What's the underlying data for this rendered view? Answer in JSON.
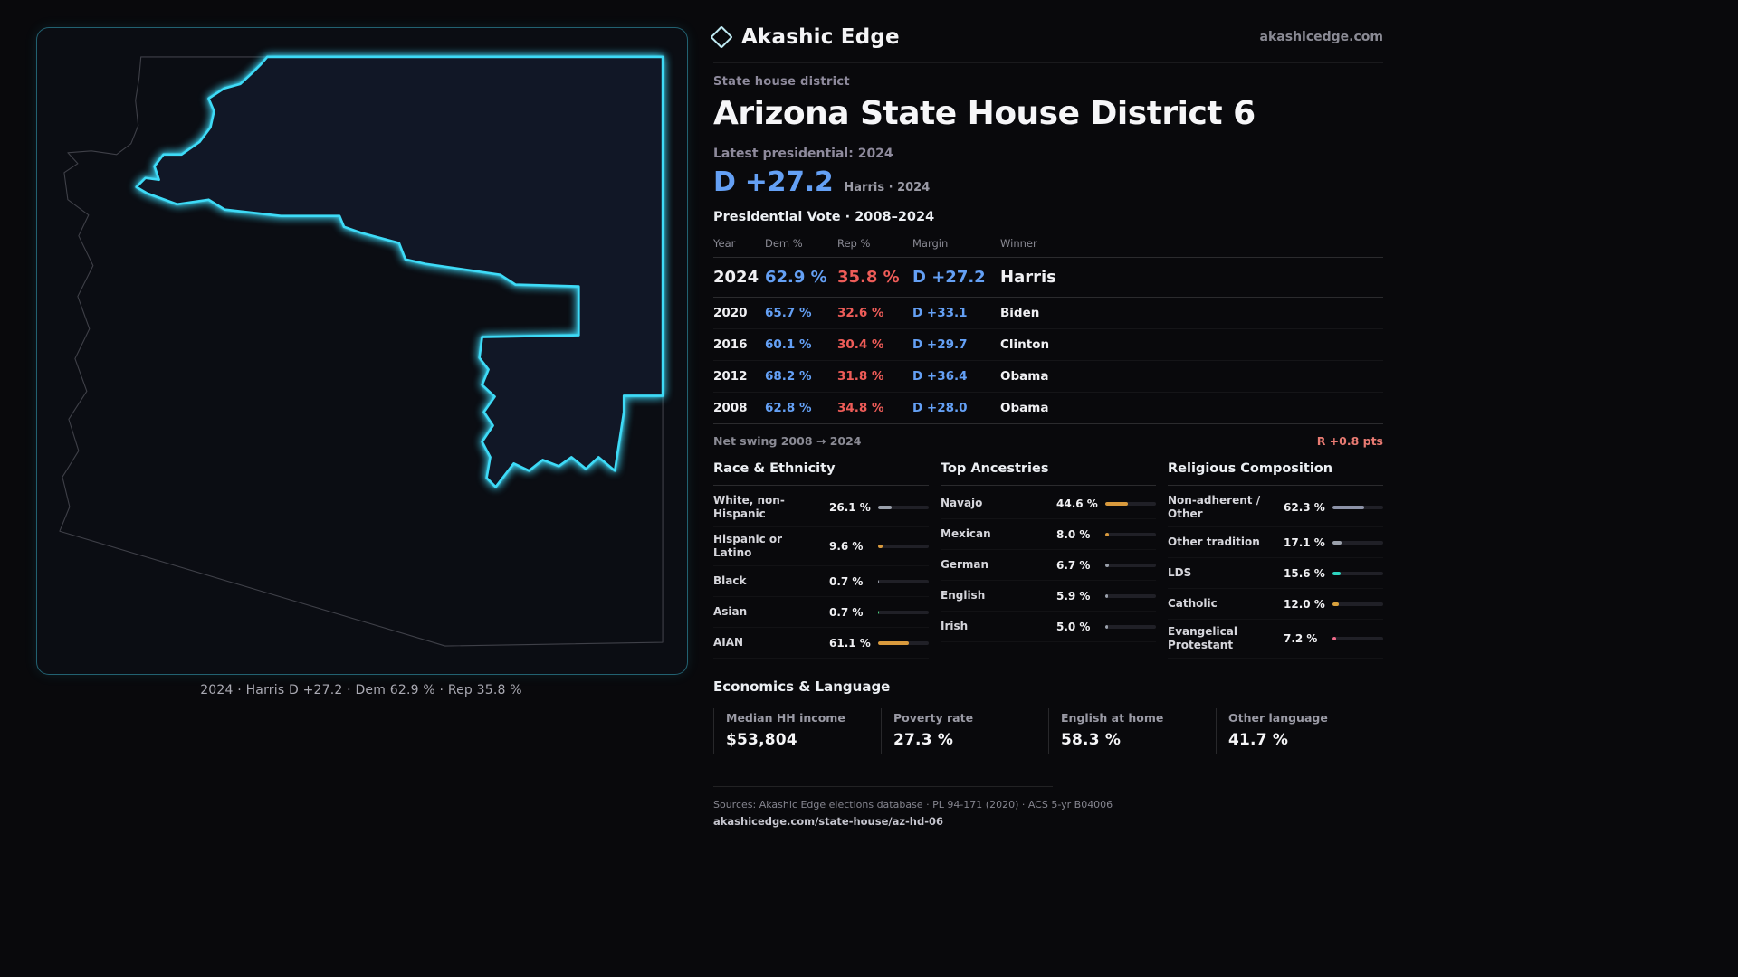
{
  "theme": {
    "background": "#09090c",
    "accent_cyan": "#3edbf7",
    "dem_blue": "#64a0f5",
    "rep_red": "#ee5c58",
    "swing_red": "#e87a72",
    "amber": "#d99a3d",
    "teal": "#2dd4bf",
    "pink": "#ef6a8a",
    "muted": "#9a9aa5"
  },
  "header": {
    "brand": "Akashic Edge",
    "site": "akashicedge.com",
    "logo_icon": "diamond-icon"
  },
  "district": {
    "kicker": "State house district",
    "title": "Arizona State House District 6",
    "latest_label": "Latest presidential: 2024",
    "headline_margin": "D +27.2",
    "headline_detail": "Harris · 2024"
  },
  "map": {
    "caption": "2024 · Harris D +27.2 · Dem 62.9 % · Rep 35.8 %"
  },
  "vote_table": {
    "title": "Presidential Vote · 2008–2024",
    "columns": [
      "Year",
      "Dem %",
      "Rep %",
      "Margin",
      "Winner"
    ],
    "rows": [
      {
        "year": "2024",
        "dem": "62.9 %",
        "rep": "35.8 %",
        "margin": "D +27.2",
        "winner": "Harris",
        "highlight": true
      },
      {
        "year": "2020",
        "dem": "65.7 %",
        "rep": "32.6 %",
        "margin": "D +33.1",
        "winner": "Biden",
        "highlight": false
      },
      {
        "year": "2016",
        "dem": "60.1 %",
        "rep": "30.4 %",
        "margin": "D +29.7",
        "winner": "Clinton",
        "highlight": false
      },
      {
        "year": "2012",
        "dem": "68.2 %",
        "rep": "31.8 %",
        "margin": "D +36.4",
        "winner": "Obama",
        "highlight": false
      },
      {
        "year": "2008",
        "dem": "62.8 %",
        "rep": "34.8 %",
        "margin": "D +28.0",
        "winner": "Obama",
        "highlight": false
      }
    ],
    "net_swing_label": "Net swing 2008 → 2024",
    "net_swing_value": "R +0.8 pts"
  },
  "demographics": [
    {
      "title": "Race & Ethnicity",
      "rows": [
        {
          "label": "White, non-Hispanic",
          "value": "26.1 %",
          "pct": 26.1,
          "color": "#9aa0ab"
        },
        {
          "label": "Hispanic or Latino",
          "value": "9.6 %",
          "pct": 9.6,
          "color": "#d99a3d"
        },
        {
          "label": "Black",
          "value": "0.7 %",
          "pct": 0.7,
          "color": "#9aa0ab"
        },
        {
          "label": "Asian",
          "value": "0.7 %",
          "pct": 0.7,
          "color": "#4ade80"
        },
        {
          "label": "AIAN",
          "value": "61.1 %",
          "pct": 61.1,
          "color": "#d99a3d"
        }
      ]
    },
    {
      "title": "Top Ancestries",
      "rows": [
        {
          "label": "Navajo",
          "value": "44.6 %",
          "pct": 44.6,
          "color": "#d99a3d"
        },
        {
          "label": "Mexican",
          "value": "8.0 %",
          "pct": 8.0,
          "color": "#d99a3d"
        },
        {
          "label": "German",
          "value": "6.7 %",
          "pct": 6.7,
          "color": "#9aa0ab"
        },
        {
          "label": "English",
          "value": "5.9 %",
          "pct": 5.9,
          "color": "#9aa0ab"
        },
        {
          "label": "Irish",
          "value": "5.0 %",
          "pct": 5.0,
          "color": "#9aa0ab"
        }
      ]
    },
    {
      "title": "Religious Composition",
      "rows": [
        {
          "label": "Non-adherent / Other",
          "value": "62.3 %",
          "pct": 62.3,
          "color": "#8d93a8"
        },
        {
          "label": "Other tradition",
          "value": "17.1 %",
          "pct": 17.1,
          "color": "#9aa0ab"
        },
        {
          "label": "LDS",
          "value": "15.6 %",
          "pct": 15.6,
          "color": "#2dd4bf"
        },
        {
          "label": "Catholic",
          "value": "12.0 %",
          "pct": 12.0,
          "color": "#d9a13d"
        },
        {
          "label": "Evangelical Protestant",
          "value": "7.2 %",
          "pct": 7.2,
          "color": "#ef6a8a"
        }
      ]
    }
  ],
  "economics": {
    "title": "Economics & Language",
    "stats": [
      {
        "label": "Median HH income",
        "value": "$53,804"
      },
      {
        "label": "Poverty rate",
        "value": "27.3 %"
      },
      {
        "label": "English at home",
        "value": "58.3 %"
      },
      {
        "label": "Other language",
        "value": "41.7 %"
      }
    ]
  },
  "footer": {
    "sources": "Sources: Akashic Edge elections database · PL 94-171 (2020) · ACS 5-yr B04006",
    "permalink": "akashicedge.com/state-house/az-hd-06"
  },
  "chart_data": [
    {
      "type": "table",
      "title": "Presidential Vote · 2008–2024",
      "columns": [
        "Year",
        "Dem %",
        "Rep %",
        "Margin",
        "Winner"
      ],
      "rows": [
        [
          2024,
          62.9,
          35.8,
          "D +27.2",
          "Harris"
        ],
        [
          2020,
          65.7,
          32.6,
          "D +33.1",
          "Biden"
        ],
        [
          2016,
          60.1,
          30.4,
          "D +29.7",
          "Clinton"
        ],
        [
          2012,
          68.2,
          31.8,
          "D +36.4",
          "Obama"
        ],
        [
          2008,
          62.8,
          34.8,
          "D +28.0",
          "Obama"
        ]
      ],
      "annotations": [
        "Net swing 2008 → 2024: R +0.8 pts",
        "Latest presidential 2024: D +27.2 (Harris)"
      ]
    },
    {
      "type": "bar",
      "title": "Race & Ethnicity",
      "categories": [
        "White, non-Hispanic",
        "Hispanic or Latino",
        "Black",
        "Asian",
        "AIAN"
      ],
      "values": [
        26.1,
        9.6,
        0.7,
        0.7,
        61.1
      ],
      "unit": "%",
      "xlim": [
        0,
        100
      ]
    },
    {
      "type": "bar",
      "title": "Top Ancestries",
      "categories": [
        "Navajo",
        "Mexican",
        "German",
        "English",
        "Irish"
      ],
      "values": [
        44.6,
        8.0,
        6.7,
        5.9,
        5.0
      ],
      "unit": "%",
      "xlim": [
        0,
        100
      ]
    },
    {
      "type": "bar",
      "title": "Religious Composition",
      "categories": [
        "Non-adherent / Other",
        "Other tradition",
        "LDS",
        "Catholic",
        "Evangelical Protestant"
      ],
      "values": [
        62.3,
        17.1,
        15.6,
        12.0,
        7.2
      ],
      "unit": "%",
      "xlim": [
        0,
        100
      ]
    },
    {
      "type": "table",
      "title": "Economics & Language",
      "columns": [
        "Median HH income",
        "Poverty rate",
        "English at home",
        "Other language"
      ],
      "rows": [
        [
          "$53,804",
          "27.3 %",
          "58.3 %",
          "41.7 %"
        ]
      ]
    }
  ]
}
